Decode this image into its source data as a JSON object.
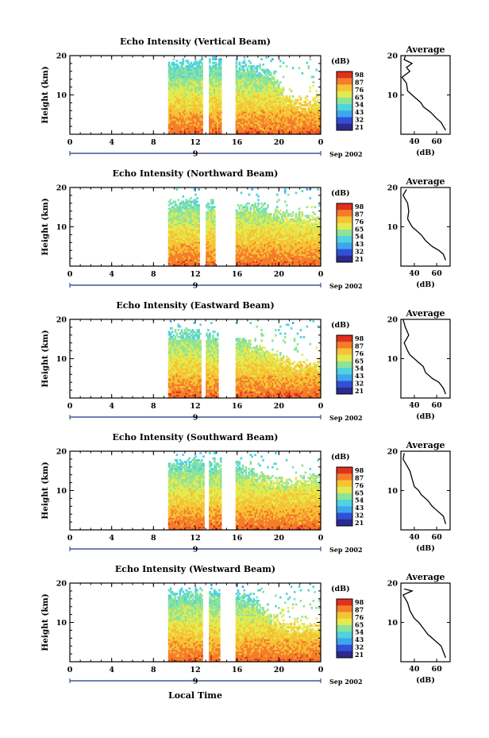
{
  "x_axis_label": "Local Time",
  "date_label": "Sep 2002",
  "colorbar": {
    "unit_label": "(dB)",
    "tick_labels": [
      "98",
      "87",
      "76",
      "65",
      "54",
      "43",
      "32",
      "21"
    ],
    "colors": [
      "#2c2a8c",
      "#3050d8",
      "#3ea6ef",
      "#4fd3df",
      "#8de39a",
      "#e4ea4e",
      "#f6c335",
      "#f47d2b",
      "#e0301e"
    ]
  },
  "chart_data": [
    {
      "type": "heatmap",
      "title": "Echo Intensity (Vertical Beam)",
      "ylabel": "Height (km)",
      "xticks": [
        "0",
        "4",
        "8",
        "12",
        "16",
        "20",
        "0"
      ],
      "xlim": [
        0,
        24
      ],
      "yticks": [
        "20",
        "10"
      ],
      "ylim": [
        0,
        20
      ],
      "day_marker": "9",
      "data_x_start": 9.4,
      "data_x_end": 24,
      "gaps": [
        [
          12.7,
          13.3
        ],
        [
          14.4,
          15.8
        ]
      ],
      "top_height_km": [
        [
          9.4,
          18
        ],
        [
          12,
          19
        ],
        [
          15.8,
          18.5
        ],
        [
          18,
          17
        ],
        [
          19.5,
          15
        ],
        [
          21,
          9
        ],
        [
          22.5,
          8
        ],
        [
          24,
          10
        ]
      ],
      "profile": {
        "title": "Average",
        "xlabel": "(dB)",
        "xticks": [
          "40",
          "60"
        ],
        "yticks": [
          "20",
          "10"
        ],
        "points": [
          [
            32,
            20
          ],
          [
            31,
            19
          ],
          [
            38,
            18
          ],
          [
            33,
            17
          ],
          [
            36,
            16
          ],
          [
            29,
            14.5
          ],
          [
            33,
            13
          ],
          [
            34,
            11
          ],
          [
            40,
            9.5
          ],
          [
            46,
            8
          ],
          [
            48,
            7
          ],
          [
            55,
            5.5
          ],
          [
            60,
            4
          ],
          [
            64,
            3
          ],
          [
            66,
            2
          ],
          [
            68,
            1
          ]
        ]
      }
    },
    {
      "type": "heatmap",
      "title": "Echo Intensity (Northward Beam)",
      "ylabel": "Height (km)",
      "xticks": [
        "0",
        "4",
        "8",
        "12",
        "16",
        "20",
        "0"
      ],
      "xlim": [
        0,
        24
      ],
      "yticks": [
        "20",
        "10"
      ],
      "ylim": [
        0,
        20
      ],
      "day_marker": "9",
      "data_x_start": 9.4,
      "data_x_end": 24,
      "gaps": [
        [
          12.4,
          12.9
        ],
        [
          13.8,
          15.8
        ]
      ],
      "top_height_km": [
        [
          9.4,
          16
        ],
        [
          12,
          17
        ],
        [
          15.8,
          15
        ],
        [
          18,
          16
        ],
        [
          20,
          14
        ],
        [
          22,
          13
        ],
        [
          24,
          12
        ]
      ],
      "profile": {
        "title": "Average",
        "xlabel": "(dB)",
        "xticks": [
          "40",
          "60"
        ],
        "yticks": [
          "20",
          "10"
        ],
        "points": [
          [
            33,
            19.5
          ],
          [
            30,
            18
          ],
          [
            34,
            16
          ],
          [
            35,
            14
          ],
          [
            34,
            12
          ],
          [
            38,
            10
          ],
          [
            42,
            9
          ],
          [
            46,
            8
          ],
          [
            50,
            6.5
          ],
          [
            56,
            5
          ],
          [
            62,
            4
          ],
          [
            66,
            3
          ],
          [
            68,
            1.5
          ]
        ]
      }
    },
    {
      "type": "heatmap",
      "title": "Echo Intensity (Eastward Beam)",
      "ylabel": "Height (km)",
      "xticks": [
        "0",
        "4",
        "8",
        "12",
        "16",
        "20",
        "0"
      ],
      "xlim": [
        0,
        24
      ],
      "yticks": [
        "20",
        "10"
      ],
      "ylim": [
        0,
        20
      ],
      "day_marker": "9",
      "data_x_start": 9.4,
      "data_x_end": 24,
      "gaps": [
        [
          12.5,
          13.0
        ],
        [
          14.2,
          15.8
        ]
      ],
      "top_height_km": [
        [
          9.4,
          17
        ],
        [
          12,
          17
        ],
        [
          15.8,
          16
        ],
        [
          18,
          13
        ],
        [
          20,
          11
        ],
        [
          22,
          9
        ],
        [
          24,
          9
        ]
      ],
      "profile": {
        "title": "Average",
        "xlabel": "(dB)",
        "xticks": [
          "40",
          "60"
        ],
        "yticks": [
          "20",
          "10"
        ],
        "points": [
          [
            30,
            20
          ],
          [
            32,
            18
          ],
          [
            35,
            16
          ],
          [
            31,
            14
          ],
          [
            34,
            12
          ],
          [
            36,
            11
          ],
          [
            42,
            9.5
          ],
          [
            48,
            8
          ],
          [
            50,
            6.5
          ],
          [
            56,
            5
          ],
          [
            62,
            4
          ],
          [
            66,
            2.5
          ],
          [
            68,
            1
          ]
        ]
      }
    },
    {
      "type": "heatmap",
      "title": "Echo Intensity (Southward Beam)",
      "ylabel": "Height (km)",
      "xticks": [
        "0",
        "4",
        "8",
        "12",
        "16",
        "20",
        "0"
      ],
      "xlim": [
        0,
        24
      ],
      "yticks": [
        "20",
        "10"
      ],
      "ylim": [
        0,
        20
      ],
      "day_marker": "9",
      "data_x_start": 9.4,
      "data_x_end": 24,
      "gaps": [
        [
          12.8,
          13.3
        ],
        [
          14.4,
          15.8
        ]
      ],
      "top_height_km": [
        [
          9.4,
          17
        ],
        [
          12,
          18
        ],
        [
          15.8,
          17
        ],
        [
          18,
          14
        ],
        [
          20,
          13
        ],
        [
          22,
          13
        ],
        [
          24,
          14
        ]
      ],
      "profile": {
        "title": "Average",
        "xlabel": "(dB)",
        "xticks": [
          "40",
          "60"
        ],
        "yticks": [
          "20",
          "10"
        ],
        "points": [
          [
            31,
            19.5
          ],
          [
            30,
            18
          ],
          [
            34,
            16
          ],
          [
            36,
            15
          ],
          [
            38,
            13
          ],
          [
            40,
            11
          ],
          [
            44,
            10
          ],
          [
            46,
            9
          ],
          [
            52,
            7.5
          ],
          [
            56,
            6
          ],
          [
            60,
            5
          ],
          [
            66,
            3.5
          ],
          [
            68,
            1.5
          ]
        ]
      }
    },
    {
      "type": "heatmap",
      "title": "Echo Intensity (Westward Beam)",
      "ylabel": "Height (km)",
      "xticks": [
        "0",
        "4",
        "8",
        "12",
        "16",
        "20",
        "0"
      ],
      "xlim": [
        0,
        24
      ],
      "yticks": [
        "20",
        "10"
      ],
      "ylim": [
        0,
        20
      ],
      "day_marker": "9",
      "data_x_start": 9.4,
      "data_x_end": 24,
      "gaps": [
        [
          12.6,
          13.2
        ],
        [
          14.3,
          15.8
        ]
      ],
      "top_height_km": [
        [
          9.4,
          18
        ],
        [
          12,
          18
        ],
        [
          15.8,
          18
        ],
        [
          18,
          15
        ],
        [
          20,
          10
        ],
        [
          22,
          9
        ],
        [
          24,
          10
        ]
      ],
      "profile": {
        "title": "Average",
        "xlabel": "(dB)",
        "xticks": [
          "40",
          "60"
        ],
        "yticks": [
          "20",
          "10"
        ],
        "points": [
          [
            31,
            18.5
          ],
          [
            38,
            18
          ],
          [
            30,
            17
          ],
          [
            34,
            15
          ],
          [
            36,
            13
          ],
          [
            40,
            11
          ],
          [
            44,
            10
          ],
          [
            48,
            8.5
          ],
          [
            52,
            7
          ],
          [
            58,
            5.5
          ],
          [
            64,
            4
          ],
          [
            66,
            2.5
          ],
          [
            68,
            1
          ]
        ]
      }
    }
  ]
}
